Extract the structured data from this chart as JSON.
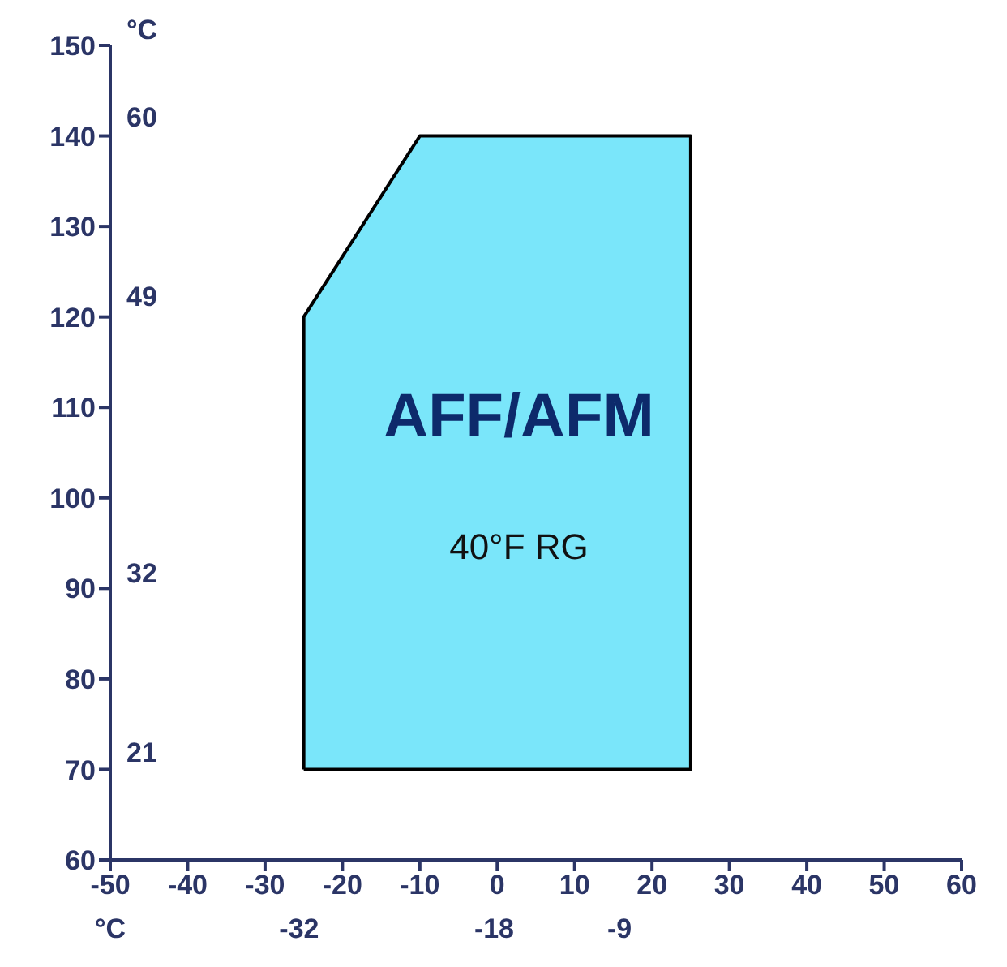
{
  "chart_data": {
    "type": "area",
    "x": [
      -25,
      -25,
      -10,
      25,
      25,
      -25
    ],
    "series": [
      {
        "color": "#7ae6fa",
        "values": [
          70,
          120,
          140,
          140,
          70,
          70
        ]
      }
    ],
    "xlim": [
      -50,
      60
    ],
    "xticks": [
      -50,
      -40,
      -30,
      -20,
      -10,
      0,
      10,
      20,
      30,
      40,
      50,
      60
    ],
    "ylim": [
      60,
      150
    ],
    "yticks": [
      60,
      70,
      80,
      90,
      100,
      110,
      120,
      130,
      140,
      150
    ],
    "x2lim": [
      -45.56,
      15.56
    ],
    "x2ticks": [
      -32,
      -18,
      -9
    ],
    "x2label": "°C",
    "y2lim": [
      15.56,
      65.56
    ],
    "y2ticks": [
      21,
      32,
      49,
      60
    ],
    "y2label": "°C",
    "annotations": [
      "AFF/AFM",
      "40°F RG"
    ]
  }
}
